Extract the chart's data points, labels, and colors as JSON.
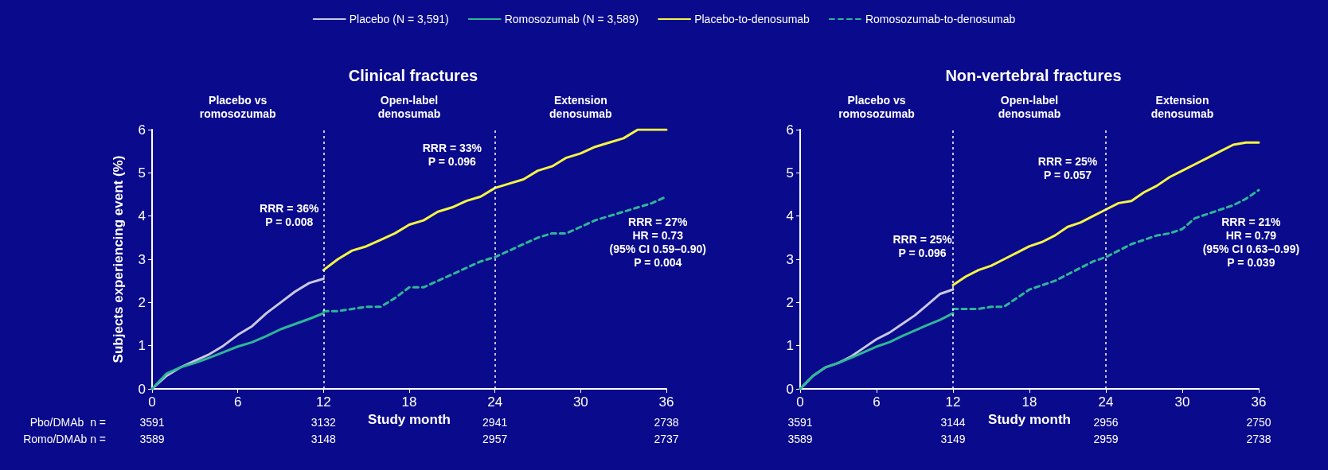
{
  "chart_data": [
    {
      "type": "line",
      "title": "Clinical fractures",
      "xlabel": "Study month",
      "ylabel": "Subjects experiencing event (%)",
      "xlim": [
        0,
        36
      ],
      "xticks": [
        0,
        6,
        12,
        18,
        24,
        30,
        36
      ],
      "ylim": [
        0,
        6
      ],
      "yticks": [
        0,
        1,
        2,
        3,
        4,
        5,
        6
      ],
      "legend": "top",
      "marker": "none",
      "grid": false,
      "ref_lines": [
        {
          "axis": "x",
          "value": 12,
          "color": "#ffffff",
          "line_style": "dotted"
        },
        {
          "axis": "x",
          "value": 24,
          "color": "#ffffff",
          "line_style": "dotted"
        }
      ],
      "series": [
        {
          "name": "Placebo (N = 3,591)",
          "color": "#c8c8e0",
          "line_style": "solid",
          "x": [
            0,
            1,
            2,
            3,
            4,
            5,
            6,
            7,
            8,
            9,
            10,
            11,
            12
          ],
          "values": [
            0,
            0.3,
            0.5,
            0.65,
            0.8,
            1.0,
            1.25,
            1.45,
            1.75,
            2.0,
            2.25,
            2.45,
            2.55
          ]
        },
        {
          "name": "Romosozumab (N = 3,589)",
          "color": "#2db896",
          "line_style": "solid",
          "x": [
            0,
            1,
            2,
            3,
            4,
            5,
            6,
            7,
            8,
            9,
            10,
            11,
            12
          ],
          "values": [
            0,
            0.35,
            0.5,
            0.6,
            0.72,
            0.85,
            0.98,
            1.08,
            1.22,
            1.38,
            1.5,
            1.62,
            1.75
          ]
        },
        {
          "name": "Placebo-to-denosumab",
          "color": "#f5f542",
          "line_style": "solid",
          "x": [
            12,
            13,
            14,
            15,
            16,
            17,
            18,
            19,
            20,
            21,
            22,
            23,
            24,
            25,
            26,
            27,
            28,
            29,
            30,
            31,
            32,
            33,
            34,
            35,
            36
          ],
          "values": [
            2.75,
            3.0,
            3.2,
            3.3,
            3.45,
            3.6,
            3.8,
            3.9,
            4.1,
            4.2,
            4.35,
            4.45,
            4.65,
            4.75,
            4.85,
            5.05,
            5.15,
            5.35,
            5.45,
            5.6,
            5.7,
            5.8,
            6.0,
            6.0,
            6.0
          ]
        },
        {
          "name": "Romosozumab-to-denosumab",
          "color": "#2db896",
          "line_style": "dashed",
          "x": [
            12,
            13,
            14,
            15,
            16,
            17,
            18,
            19,
            20,
            21,
            22,
            23,
            24,
            25,
            26,
            27,
            28,
            29,
            30,
            31,
            32,
            33,
            34,
            35,
            36
          ],
          "values": [
            1.8,
            1.8,
            1.85,
            1.9,
            1.9,
            2.1,
            2.35,
            2.35,
            2.5,
            2.65,
            2.8,
            2.95,
            3.05,
            3.2,
            3.35,
            3.5,
            3.6,
            3.6,
            3.75,
            3.9,
            4.0,
            4.1,
            4.2,
            4.3,
            4.45
          ]
        }
      ],
      "annotations": [
        "Placebo vs\nromosozumab",
        "Open-label\ndenosumab",
        "Extension\ndenosumab",
        "RRR = 36%\nP = 0.008",
        "RRR = 33%\nP = 0.096",
        "RRR = 27%\nHR = 0.73\n(95% CI 0.59–0.90)\nP = 0.004",
        "Pbo/DMAb  n =",
        "Romo/DMAb n =",
        "3591",
        "3132",
        "2941",
        "2738",
        "3589",
        "3148",
        "2957",
        "2737"
      ]
    },
    {
      "type": "line",
      "title": "Non-vertebral fractures",
      "xlabel": "Study month",
      "xlim": [
        0,
        36
      ],
      "xticks": [
        0,
        6,
        12,
        18,
        24,
        30,
        36
      ],
      "ylim": [
        0,
        6
      ],
      "yticks": [
        0,
        1,
        2,
        3,
        4,
        5,
        6
      ],
      "marker": "none",
      "grid": false,
      "ref_lines": [
        {
          "axis": "x",
          "value": 12,
          "color": "#ffffff",
          "line_style": "dotted"
        },
        {
          "axis": "x",
          "value": 24,
          "color": "#ffffff",
          "line_style": "dotted"
        }
      ],
      "series": [
        {
          "color": "#c8c8e0",
          "line_style": "solid",
          "x": [
            0,
            1,
            2,
            3,
            4,
            5,
            6,
            7,
            8,
            9,
            10,
            11,
            12
          ],
          "values": [
            0,
            0.3,
            0.5,
            0.6,
            0.75,
            0.95,
            1.15,
            1.3,
            1.5,
            1.7,
            1.95,
            2.2,
            2.3
          ]
        },
        {
          "color": "#2db896",
          "line_style": "solid",
          "x": [
            0,
            1,
            2,
            3,
            4,
            5,
            6,
            7,
            8,
            9,
            10,
            11,
            12
          ],
          "values": [
            0,
            0.3,
            0.5,
            0.6,
            0.72,
            0.85,
            0.98,
            1.08,
            1.22,
            1.35,
            1.48,
            1.6,
            1.75
          ]
        },
        {
          "color": "#f5f542",
          "line_style": "solid",
          "x": [
            12,
            13,
            14,
            15,
            16,
            17,
            18,
            19,
            20,
            21,
            22,
            23,
            24,
            25,
            26,
            27,
            28,
            29,
            30,
            31,
            32,
            33,
            34,
            35,
            36
          ],
          "values": [
            2.4,
            2.6,
            2.75,
            2.85,
            3.0,
            3.15,
            3.3,
            3.4,
            3.55,
            3.75,
            3.85,
            4.0,
            4.15,
            4.3,
            4.35,
            4.55,
            4.7,
            4.9,
            5.05,
            5.2,
            5.35,
            5.5,
            5.65,
            5.7,
            5.7
          ]
        },
        {
          "color": "#2db896",
          "line_style": "dashed",
          "x": [
            12,
            13,
            14,
            15,
            16,
            17,
            18,
            19,
            20,
            21,
            22,
            23,
            24,
            25,
            26,
            27,
            28,
            29,
            30,
            31,
            32,
            33,
            34,
            35,
            36
          ],
          "values": [
            1.85,
            1.85,
            1.85,
            1.9,
            1.9,
            2.1,
            2.3,
            2.4,
            2.5,
            2.65,
            2.8,
            2.95,
            3.05,
            3.2,
            3.35,
            3.45,
            3.55,
            3.6,
            3.7,
            3.95,
            4.05,
            4.15,
            4.25,
            4.4,
            4.6
          ]
        }
      ],
      "annotations": [
        "Placebo vs\nromosozumab",
        "Open-label\ndenosumab",
        "Extension\ndenosumab",
        "RRR = 25%\nP = 0.096",
        "RRR = 25%\nP = 0.057",
        "RRR = 21%\nHR = 0.79\n(95% CI 0.63–0.99)\nP = 0.039",
        "3591",
        "3144",
        "2956",
        "2750",
        "3589",
        "3149",
        "2959",
        "2738"
      ]
    }
  ]
}
